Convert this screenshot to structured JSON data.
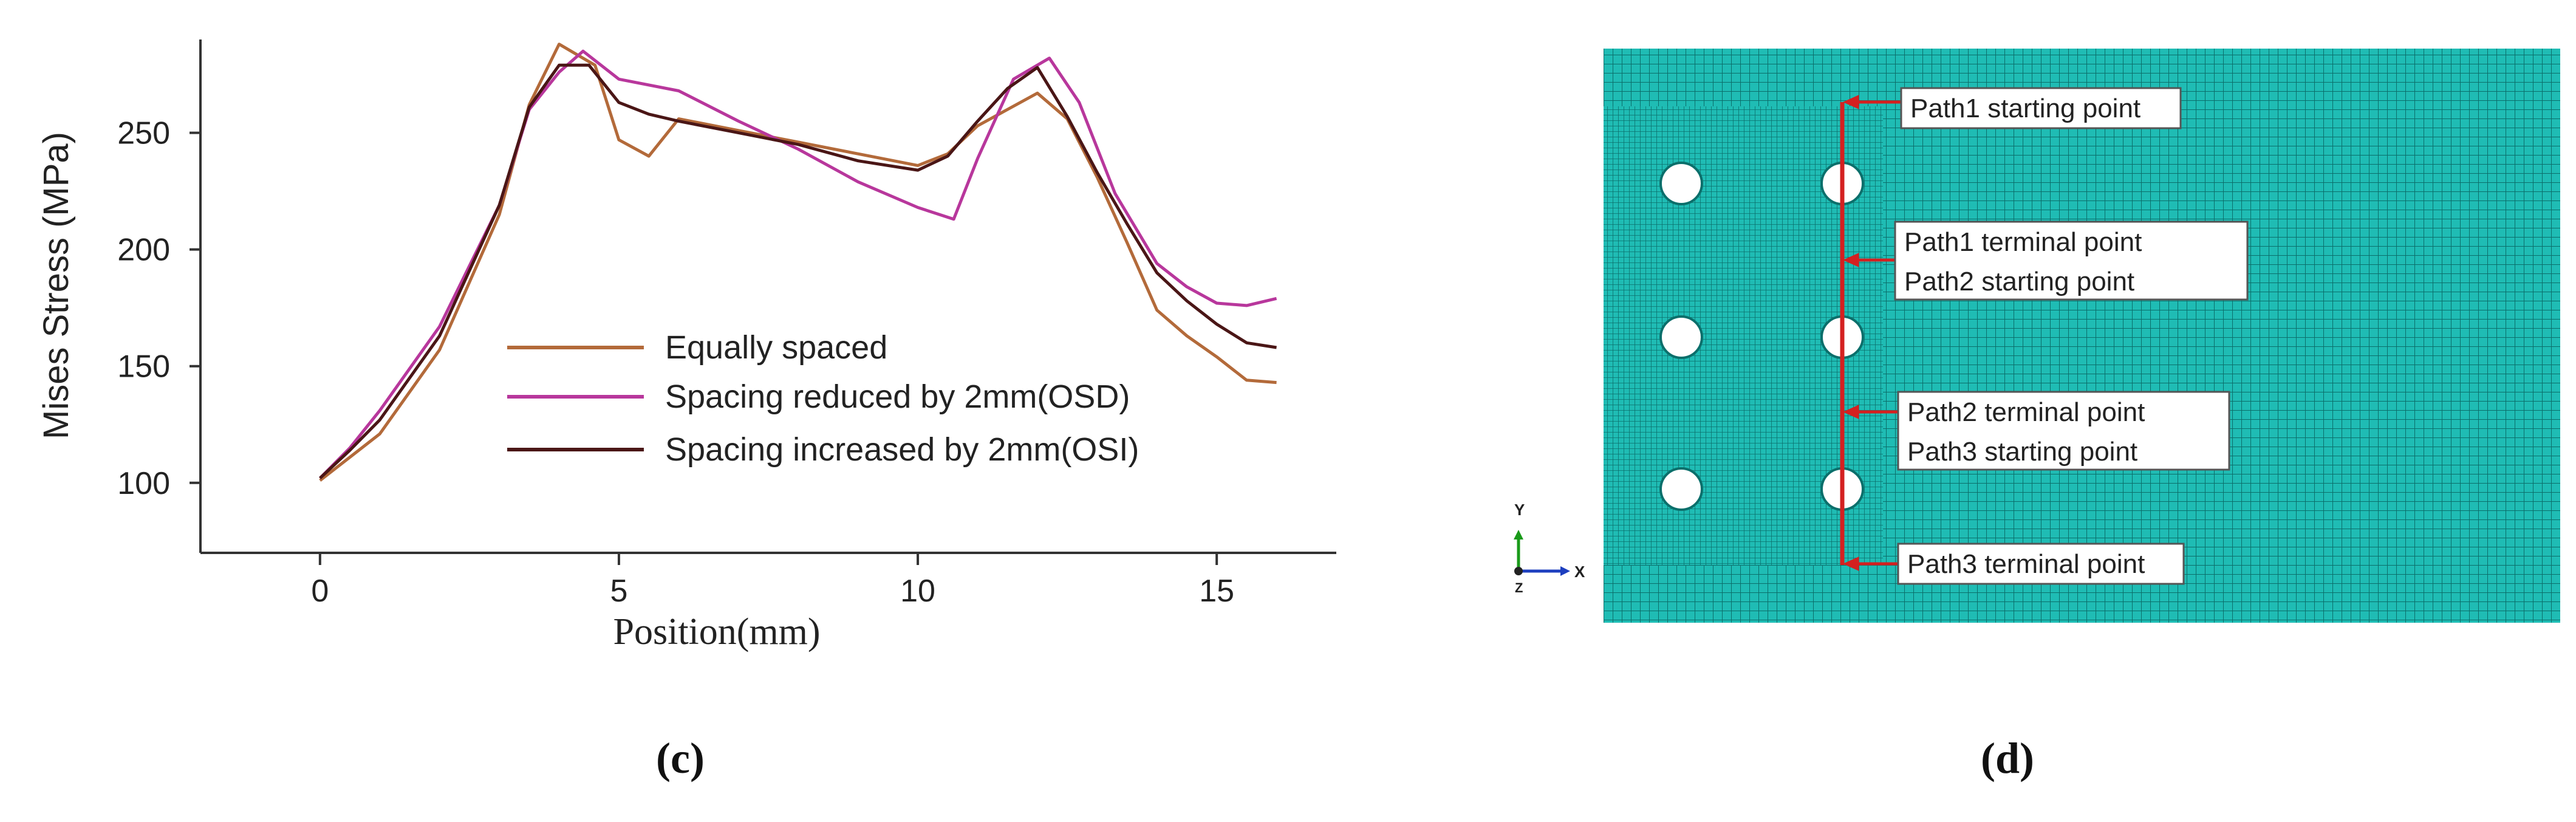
{
  "chart_data": {
    "type": "line",
    "title": "",
    "xlabel": "Position(mm)",
    "ylabel": "Mises Stress (MPa)",
    "xlim": [
      -2,
      17
    ],
    "ylim": [
      70,
      290
    ],
    "xticks": [
      0,
      5,
      10,
      15
    ],
    "yticks": [
      100,
      150,
      200,
      250
    ],
    "legend_position": "center",
    "series": [
      {
        "name": "Equally spaced",
        "color": "#b36a3a",
        "x": [
          0,
          0.5,
          1,
          2,
          3,
          3.5,
          4,
          4.6,
          5,
          5.5,
          6,
          7,
          8,
          9,
          10,
          10.5,
          11,
          11.5,
          12,
          12.5,
          13,
          13.5,
          14,
          14.5,
          15,
          15.5,
          16
        ],
        "y": [
          101,
          111,
          121,
          157,
          215,
          262,
          288,
          279,
          247,
          240,
          256,
          251,
          246,
          241,
          236,
          241,
          253,
          260,
          267,
          256,
          231,
          203,
          174,
          163,
          154,
          144,
          143
        ]
      },
      {
        "name": "Spacing reduced by 2mm(OSD)",
        "color": "#b8379c",
        "x": [
          0,
          0.5,
          1,
          2,
          3,
          3.5,
          4,
          4.4,
          5,
          6,
          7,
          8,
          9,
          10,
          10.6,
          11,
          11.6,
          12.2,
          12.7,
          13.3,
          14,
          14.5,
          15,
          15.5,
          16
        ],
        "y": [
          102,
          115,
          131,
          167,
          219,
          260,
          276,
          285,
          273,
          268,
          255,
          243,
          229,
          218,
          213,
          239,
          273,
          282,
          263,
          224,
          194,
          184,
          177,
          176,
          179
        ]
      },
      {
        "name": "Spacing increased by 2mm(OSI)",
        "color": "#4a1616",
        "x": [
          0,
          0.5,
          1,
          2,
          3,
          3.5,
          4,
          4.5,
          5,
          5.5,
          6,
          7,
          8,
          9,
          10,
          10.5,
          11,
          11.5,
          12,
          12.5,
          13,
          13.5,
          14,
          14.5,
          15,
          15.5,
          16
        ],
        "y": [
          102,
          114,
          127,
          163,
          219,
          261,
          279,
          279,
          263,
          258,
          255,
          250,
          245,
          238,
          234,
          240,
          255,
          269,
          278,
          257,
          233,
          211,
          190,
          178,
          168,
          160,
          158
        ]
      }
    ]
  },
  "panel_labels": {
    "left": "(c)",
    "right": "(d)"
  },
  "mesh": {
    "colors": {
      "mesh": "#1fbcb4",
      "path_line": "#d42020",
      "holes": "#ffffff"
    },
    "axis_triad": {
      "y": "Y",
      "x": "X",
      "z": "Z"
    },
    "annotations": {
      "a1": "Path1 starting point",
      "a2_line1": "Path1 terminal point",
      "a2_line2": "Path2 starting point",
      "a3_line1": "Path2 terminal point",
      "a3_line2": "Path3 starting point",
      "a4": "Path3 terminal point"
    }
  }
}
